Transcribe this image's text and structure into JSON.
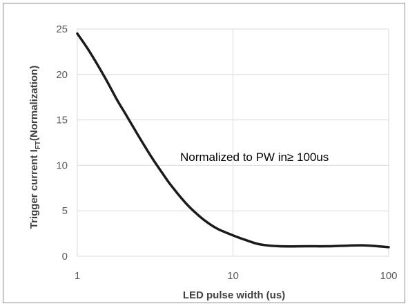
{
  "chart_data": {
    "type": "line",
    "xscale": "log",
    "xlim": [
      1,
      100
    ],
    "ylim": [
      0,
      25
    ],
    "xticks": [
      "1",
      "10",
      "100"
    ],
    "yticks": [
      "0",
      "5",
      "10",
      "15",
      "20",
      "25"
    ],
    "xlabel": "LED pulse width (us)",
    "ylabel_main": "Trigger current I",
    "ylabel_sub": "FT",
    "ylabel_tail": "(Normalization)",
    "annotation": "Normalized to PW in≥ 100us",
    "grid": "major x and y",
    "colors": {
      "line": "#1a1a1a",
      "grid": "#d9d9d9",
      "frame": "#8a8a8a",
      "tick_text": "#5a5a5a"
    },
    "series": [
      {
        "x": [
          1,
          1.2,
          1.5,
          1.8,
          2,
          2.5,
          3,
          3.5,
          4,
          5,
          6,
          7,
          8,
          10,
          12,
          15,
          20,
          30,
          40,
          50,
          70,
          100
        ],
        "y": [
          24.5,
          22.5,
          19.7,
          17.2,
          15.9,
          13.1,
          10.9,
          9.2,
          7.8,
          5.8,
          4.5,
          3.6,
          3.0,
          2.3,
          1.8,
          1.3,
          1.1,
          1.1,
          1.1,
          1.15,
          1.2,
          1.0
        ]
      }
    ]
  }
}
